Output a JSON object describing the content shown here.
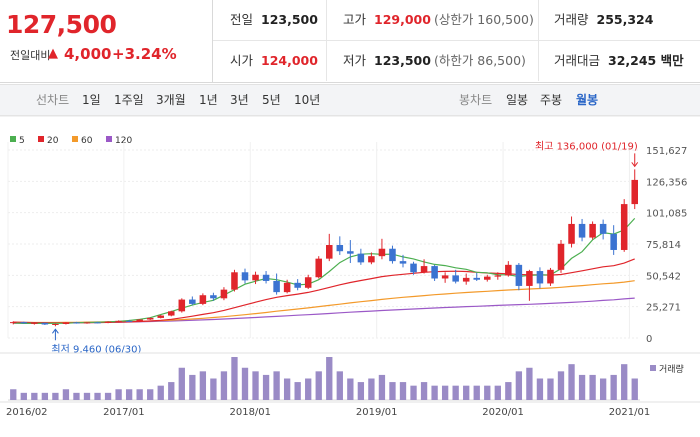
{
  "quote": {
    "price": "127,500",
    "change_label": "전일대비",
    "change_arrow": "▲",
    "change_value": "4,000",
    "change_pct": "+3.24%",
    "prev_close_label": "전일",
    "prev_close": "123,500",
    "high_label": "고가",
    "high": "129,000",
    "upper_limit": "(상한가 160,500)",
    "volume_label": "거래량",
    "volume": "255,324",
    "open_label": "시가",
    "open": "124,000",
    "low_label": "저가",
    "low": "123,500",
    "lower_limit": "(하한가 86,500)",
    "amount_label": "거래대금",
    "amount": "32,245 백만"
  },
  "tabs": {
    "candle_label": "선차트",
    "periods": [
      "1일",
      "1주일",
      "3개월",
      "1년",
      "3년",
      "5년",
      "10년"
    ],
    "bong_label": "봉차트",
    "bong_types": [
      "일봉",
      "주봉",
      "월봉"
    ],
    "active_bong": "월봉"
  },
  "colors": {
    "up": "#e0252b",
    "down": "#3b73d1",
    "ma5": "#4caf50",
    "ma20": "#e0252b",
    "ma60": "#f39a2b",
    "ma120": "#9b59c7",
    "volume": "#9a8bc6"
  },
  "chart_data": {
    "type": "candlestick",
    "period": "monthly",
    "legend": [
      {
        "name": "5",
        "color": "#4caf50"
      },
      {
        "name": "20",
        "color": "#e0252b"
      },
      {
        "name": "60",
        "color": "#f39a2b"
      },
      {
        "name": "120",
        "color": "#9b59c7"
      }
    ],
    "y_ticks": [
      0,
      25271,
      50542,
      75814,
      101085,
      126356,
      151627
    ],
    "y_tick_labels": [
      "0",
      "25,271",
      "50,542",
      "75,814",
      "101,085",
      "126,356",
      "151,627"
    ],
    "ylim": [
      0,
      151627
    ],
    "x_labels": [
      "2016/02",
      "2017/01",
      "2018/01",
      "2019/01",
      "2020/01",
      "2021/01"
    ],
    "x_label_index": [
      0,
      11,
      23,
      35,
      47,
      59
    ],
    "high_annotation": "최고 136,000 (01/19)",
    "low_annotation": "최저 9,460 (06/30)",
    "high_index": 59,
    "low_index": 4,
    "volume_label": "거래량",
    "candles": [
      {
        "o": 12000,
        "h": 13500,
        "l": 11000,
        "c": 12800
      },
      {
        "o": 12800,
        "h": 13200,
        "l": 11500,
        "c": 11900
      },
      {
        "o": 11900,
        "h": 12600,
        "l": 10800,
        "c": 12200
      },
      {
        "o": 12200,
        "h": 12400,
        "l": 10500,
        "c": 10900
      },
      {
        "o": 10900,
        "h": 11600,
        "l": 9460,
        "c": 11300
      },
      {
        "o": 11300,
        "h": 12800,
        "l": 10900,
        "c": 12500
      },
      {
        "o": 12500,
        "h": 13000,
        "l": 11600,
        "c": 11900
      },
      {
        "o": 11900,
        "h": 12800,
        "l": 11500,
        "c": 12600
      },
      {
        "o": 12600,
        "h": 13000,
        "l": 11800,
        "c": 12100
      },
      {
        "o": 12100,
        "h": 13500,
        "l": 11900,
        "c": 13200
      },
      {
        "o": 13200,
        "h": 14200,
        "l": 12800,
        "c": 13800
      },
      {
        "o": 13800,
        "h": 14600,
        "l": 12900,
        "c": 13300
      },
      {
        "o": 13300,
        "h": 15200,
        "l": 13000,
        "c": 14900
      },
      {
        "o": 14900,
        "h": 16500,
        "l": 14500,
        "c": 16200
      },
      {
        "o": 16200,
        "h": 18500,
        "l": 15800,
        "c": 18100
      },
      {
        "o": 18100,
        "h": 22000,
        "l": 17500,
        "c": 21500
      },
      {
        "o": 21500,
        "h": 32000,
        "l": 20500,
        "c": 31000
      },
      {
        "o": 31000,
        "h": 33500,
        "l": 26500,
        "c": 27500
      },
      {
        "o": 27500,
        "h": 36000,
        "l": 26500,
        "c": 34500
      },
      {
        "o": 34500,
        "h": 36500,
        "l": 30000,
        "c": 32000
      },
      {
        "o": 32000,
        "h": 41000,
        "l": 30500,
        "c": 39000
      },
      {
        "o": 39000,
        "h": 55000,
        "l": 37500,
        "c": 53000
      },
      {
        "o": 53000,
        "h": 56000,
        "l": 44000,
        "c": 46500
      },
      {
        "o": 46500,
        "h": 53500,
        "l": 43500,
        "c": 51000
      },
      {
        "o": 51000,
        "h": 54000,
        "l": 44000,
        "c": 46000
      },
      {
        "o": 46000,
        "h": 52000,
        "l": 35000,
        "c": 37000
      },
      {
        "o": 37000,
        "h": 47000,
        "l": 36000,
        "c": 44500
      },
      {
        "o": 44500,
        "h": 47500,
        "l": 38500,
        "c": 40500
      },
      {
        "o": 40500,
        "h": 51000,
        "l": 39500,
        "c": 49000
      },
      {
        "o": 49000,
        "h": 66000,
        "l": 48000,
        "c": 64000
      },
      {
        "o": 64000,
        "h": 84000,
        "l": 62000,
        "c": 75000
      },
      {
        "o": 75000,
        "h": 82000,
        "l": 67000,
        "c": 70000
      },
      {
        "o": 70000,
        "h": 79000,
        "l": 60500,
        "c": 68000
      },
      {
        "o": 68000,
        "h": 72000,
        "l": 59000,
        "c": 61000
      },
      {
        "o": 61000,
        "h": 69000,
        "l": 59500,
        "c": 66000
      },
      {
        "o": 66000,
        "h": 80000,
        "l": 63500,
        "c": 72000
      },
      {
        "o": 72000,
        "h": 74500,
        "l": 60000,
        "c": 62000
      },
      {
        "o": 62000,
        "h": 67000,
        "l": 57000,
        "c": 60000
      },
      {
        "o": 60000,
        "h": 61500,
        "l": 51000,
        "c": 53000
      },
      {
        "o": 53000,
        "h": 63500,
        "l": 52000,
        "c": 58000
      },
      {
        "o": 58000,
        "h": 59000,
        "l": 46000,
        "c": 48000
      },
      {
        "o": 48000,
        "h": 53000,
        "l": 44500,
        "c": 50500
      },
      {
        "o": 50500,
        "h": 55000,
        "l": 44000,
        "c": 45500
      },
      {
        "o": 45500,
        "h": 52000,
        "l": 43000,
        "c": 48500
      },
      {
        "o": 48500,
        "h": 52500,
        "l": 46000,
        "c": 47000
      },
      {
        "o": 47000,
        "h": 51000,
        "l": 45500,
        "c": 49500
      },
      {
        "o": 49500,
        "h": 53000,
        "l": 47000,
        "c": 50500
      },
      {
        "o": 50500,
        "h": 62000,
        "l": 49500,
        "c": 59000
      },
      {
        "o": 59000,
        "h": 60500,
        "l": 38500,
        "c": 42000
      },
      {
        "o": 42000,
        "h": 55000,
        "l": 30000,
        "c": 54000
      },
      {
        "o": 54000,
        "h": 57000,
        "l": 40000,
        "c": 44000
      },
      {
        "o": 44000,
        "h": 56500,
        "l": 42000,
        "c": 55000
      },
      {
        "o": 55000,
        "h": 79000,
        "l": 52500,
        "c": 76000
      },
      {
        "o": 76000,
        "h": 98000,
        "l": 73000,
        "c": 92000
      },
      {
        "o": 92000,
        "h": 96000,
        "l": 78000,
        "c": 81000
      },
      {
        "o": 81000,
        "h": 94000,
        "l": 79500,
        "c": 92000
      },
      {
        "o": 92000,
        "h": 95500,
        "l": 79500,
        "c": 84000
      },
      {
        "o": 84000,
        "h": 91000,
        "l": 67000,
        "c": 71000
      },
      {
        "o": 71000,
        "h": 112000,
        "l": 69500,
        "c": 108000
      },
      {
        "o": 108000,
        "h": 136000,
        "l": 104000,
        "c": 127500
      }
    ],
    "volume": [
      3,
      2,
      2,
      2,
      2,
      3,
      2,
      2,
      2,
      2,
      3,
      3,
      3,
      3,
      4,
      5,
      9,
      7,
      8,
      6,
      8,
      12,
      9,
      8,
      7,
      8,
      6,
      5,
      6,
      8,
      12,
      8,
      6,
      5,
      6,
      7,
      5,
      5,
      4,
      5,
      4,
      4,
      4,
      4,
      4,
      4,
      4,
      5,
      8,
      9,
      6,
      6,
      8,
      10,
      7,
      7,
      6,
      7,
      10,
      6
    ],
    "ma5_from_index": 4,
    "ma5": [
      12060,
      11780,
      11760,
      11740,
      11840,
      11880,
      12300,
      12480,
      12780,
      12960,
      13420,
      14080,
      15100,
      16380,
      18900,
      21260,
      24040,
      26540,
      28700,
      30400,
      34600,
      39000,
      43400,
      45800,
      48000,
      47000,
      45100,
      42800,
      43400,
      47000,
      53600,
      60800,
      65400,
      67600,
      68000,
      67400,
      67600,
      65400,
      63800,
      61400,
      59400,
      58400,
      56600,
      55400,
      53000,
      52600,
      51000,
      51000,
      49600,
      50600,
      50800,
      51000,
      55800,
      64200,
      69600,
      79200,
      85000,
      83800,
      87200,
      96500
    ],
    "ma20_from_index": 0,
    "ma20": [
      12800,
      12600,
      12400,
      12300,
      12200,
      12200,
      12300,
      12400,
      12500,
      12600,
      12800,
      13000,
      13300,
      13700,
      14300,
      15100,
      16300,
      17600,
      19000,
      20400,
      22300,
      24400,
      26700,
      28900,
      31000,
      32800,
      34200,
      35400,
      36800,
      38600,
      40800,
      42900,
      44800,
      46400,
      47900,
      49500,
      50600,
      51400,
      52200,
      53000,
      53500,
      53700,
      53900,
      53600,
      53000,
      52400,
      52100,
      51800,
      51200,
      51000,
      50900,
      50700,
      51200,
      52700,
      54200,
      55800,
      57400,
      58300,
      60400,
      63800
    ],
    "ma60": [
      12500,
      12500,
      12500,
      12500,
      12500,
      12600,
      12700,
      12800,
      12900,
      13000,
      13100,
      13300,
      13500,
      13700,
      14000,
      14400,
      14800,
      15300,
      15900,
      16500,
      17200,
      18000,
      18800,
      19700,
      20600,
      21600,
      22500,
      23400,
      24300,
      25300,
      26300,
      27300,
      28300,
      29300,
      30200,
      31100,
      32000,
      32800,
      33500,
      34200,
      34900,
      35500,
      36100,
      36700,
      37200,
      37700,
      38200,
      38700,
      39100,
      39500,
      39900,
      40300,
      40900,
      41600,
      42300,
      43000,
      43700,
      44300,
      45100,
      46200
    ],
    "ma120": [
      12000,
      12000,
      12000,
      12000,
      12100,
      12200,
      12300,
      12400,
      12500,
      12600,
      12700,
      12900,
      13100,
      13300,
      13500,
      13700,
      14000,
      14300,
      14600,
      14900,
      15300,
      15700,
      16100,
      16500,
      17000,
      17400,
      17900,
      18400,
      18800,
      19300,
      19800,
      20300,
      20800,
      21300,
      21700,
      22200,
      22600,
      23000,
      23400,
      23800,
      24200,
      24600,
      24900,
      25300,
      25600,
      25900,
      26300,
      26600,
      26900,
      27200,
      27500,
      27900,
      28300,
      28700,
      29200,
      29700,
      30300,
      30800,
      31500,
      32200
    ]
  }
}
